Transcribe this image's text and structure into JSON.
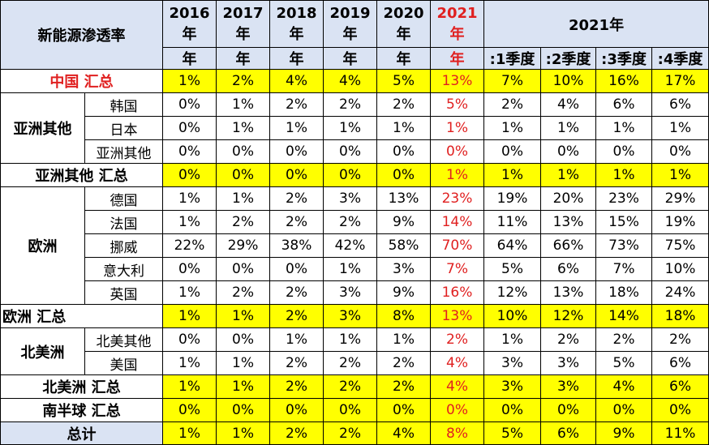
{
  "header": {
    "corner": "新能源渗透率",
    "years": [
      {
        "year": "2016",
        "unit": "年",
        "unit2": "年"
      },
      {
        "year": "2017",
        "unit": "年",
        "unit2": "年"
      },
      {
        "year": "2018",
        "unit": "年",
        "unit2": "年"
      },
      {
        "year": "2019",
        "unit": "年",
        "unit2": "年"
      },
      {
        "year": "2020",
        "unit": "年",
        "unit2": "年"
      },
      {
        "year": "2021",
        "unit": "年",
        "unit2": "年"
      }
    ],
    "group_2021": "2021年",
    "quarters": [
      ":1季度",
      ":2季度",
      ":3季度",
      ":4季度"
    ]
  },
  "china": {
    "label": "中国 汇总",
    "values": [
      "1%",
      "2%",
      "4%",
      "4%",
      "5%",
      "13%",
      "7%",
      "10%",
      "16%",
      "17%"
    ]
  },
  "asia": {
    "region": "亚洲其他",
    "rows": [
      {
        "name": "韩国",
        "values": [
          "0%",
          "1%",
          "2%",
          "2%",
          "2%",
          "5%",
          "2%",
          "4%",
          "6%",
          "6%"
        ]
      },
      {
        "name": "日本",
        "values": [
          "0%",
          "1%",
          "1%",
          "1%",
          "1%",
          "1%",
          "1%",
          "1%",
          "1%",
          "1%"
        ]
      },
      {
        "name": "亚洲其他",
        "values": [
          "0%",
          "0%",
          "0%",
          "0%",
          "0%",
          "0%",
          "0%",
          "0%",
          "0%",
          "0%"
        ]
      }
    ],
    "total_label": "亚洲其他 汇总",
    "total": [
      "0%",
      "0%",
      "0%",
      "0%",
      "0%",
      "1%",
      "1%",
      "1%",
      "1%",
      "1%"
    ]
  },
  "europe": {
    "region": "欧洲",
    "rows": [
      {
        "name": "德国",
        "values": [
          "1%",
          "1%",
          "2%",
          "3%",
          "13%",
          "23%",
          "19%",
          "20%",
          "23%",
          "29%"
        ]
      },
      {
        "name": "法国",
        "values": [
          "1%",
          "2%",
          "2%",
          "2%",
          "9%",
          "14%",
          "11%",
          "13%",
          "15%",
          "19%"
        ]
      },
      {
        "name": "挪威",
        "values": [
          "22%",
          "29%",
          "38%",
          "42%",
          "58%",
          "70%",
          "64%",
          "66%",
          "73%",
          "75%"
        ]
      },
      {
        "name": "意大利",
        "values": [
          "0%",
          "0%",
          "0%",
          "1%",
          "3%",
          "7%",
          "5%",
          "6%",
          "7%",
          "10%"
        ]
      },
      {
        "name": "英国",
        "values": [
          "1%",
          "2%",
          "2%",
          "3%",
          "9%",
          "16%",
          "12%",
          "13%",
          "18%",
          "24%"
        ]
      }
    ],
    "total_label": "欧洲 汇总",
    "total": [
      "1%",
      "1%",
      "2%",
      "3%",
      "8%",
      "13%",
      "10%",
      "12%",
      "14%",
      "18%"
    ]
  },
  "north_america": {
    "region": "北美洲",
    "rows": [
      {
        "name": "北美其他",
        "values": [
          "0%",
          "0%",
          "1%",
          "1%",
          "1%",
          "2%",
          "1%",
          "2%",
          "2%",
          "2%"
        ]
      },
      {
        "name": "美国",
        "values": [
          "1%",
          "1%",
          "2%",
          "2%",
          "2%",
          "4%",
          "3%",
          "3%",
          "5%",
          "6%"
        ]
      }
    ],
    "total_label": "北美洲 汇总",
    "total": [
      "1%",
      "1%",
      "2%",
      "2%",
      "2%",
      "4%",
      "3%",
      "3%",
      "4%",
      "6%"
    ]
  },
  "south": {
    "total_label": "南半球 汇总",
    "total": [
      "0%",
      "0%",
      "0%",
      "0%",
      "0%",
      "0%",
      "0%",
      "0%",
      "0%",
      "0%"
    ]
  },
  "grand": {
    "label": "总计",
    "total": [
      "1%",
      "1%",
      "2%",
      "2%",
      "4%",
      "8%",
      "5%",
      "6%",
      "9%",
      "11%"
    ]
  },
  "colors": {
    "header_bg": "#dae3f3",
    "highlight": "#ffff00",
    "accent_red": "#e02020"
  }
}
